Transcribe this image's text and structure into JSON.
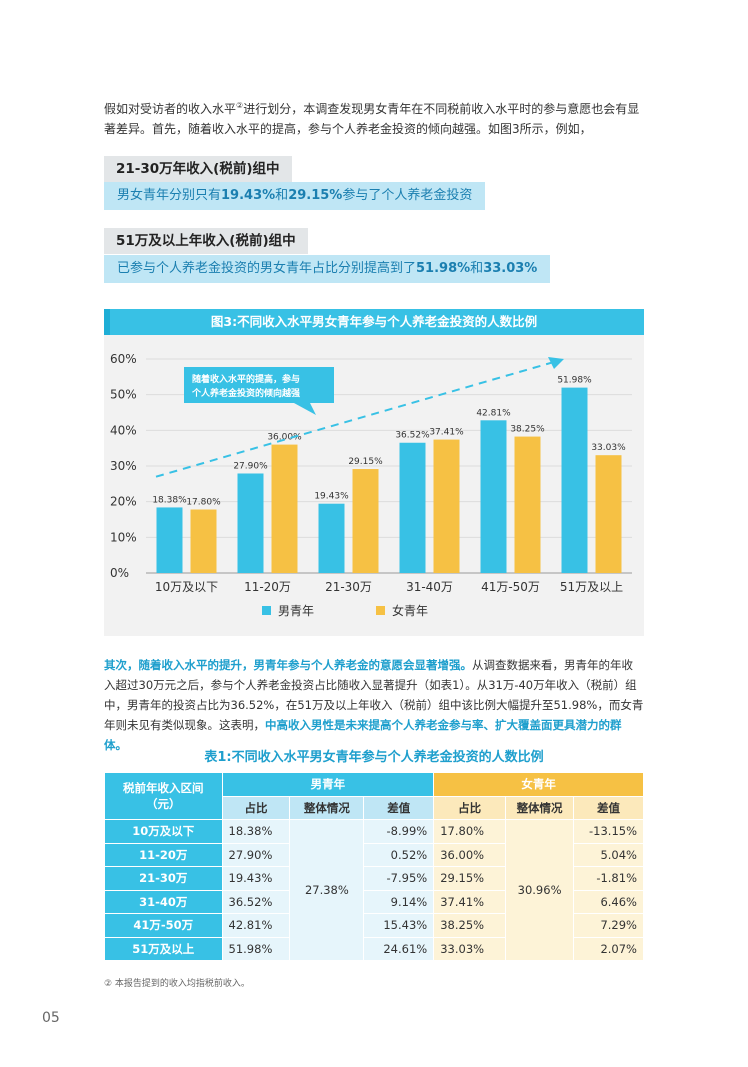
{
  "intro": {
    "text_before_sup": "假如对受访者的收入水平",
    "sup": "②",
    "text_after_sup": "进行划分，本调查发现男女青年在不同税前收入水平时的参与意愿也会有显著差异。首先，随着收入水平的提高，参与个人养老金投资的倾向越强。如图3所示，例如，"
  },
  "highlight1": {
    "title": "21-30万年收入(税前)组中",
    "body_prefix": "男女青年分别只有",
    "val1": "19.43%",
    "mid": "和",
    "val2": "29.15%",
    "body_suffix": "参与了个人养老金投资"
  },
  "highlight2": {
    "title": "51万及以上年收入(税前)组中",
    "body_prefix": "已参与个人养老金投资的男女青年占比分别提高到了",
    "val1": "51.98%",
    "mid": "和",
    "val2": "33.03%"
  },
  "chart_title": "图3:不同收入水平男女青年参与个人养老金投资的人数比例",
  "chart_data": {
    "type": "bar",
    "title": "图3:不同收入水平男女青年参与个人养老金投资的人数比例",
    "categories": [
      "10万及以下",
      "11-20万",
      "21-30万",
      "31-40万",
      "41万-50万",
      "51万及以上"
    ],
    "series": [
      {
        "name": "男青年",
        "values": [
          18.38,
          27.9,
          19.43,
          36.52,
          42.81,
          51.98
        ],
        "labels": [
          "18.38%",
          "27.90%",
          "19.43%",
          "36.52%",
          "42.81%",
          "51.98%"
        ]
      },
      {
        "name": "女青年",
        "values": [
          17.8,
          36.0,
          29.15,
          37.41,
          38.25,
          33.03
        ],
        "labels": [
          "17.80%",
          "36.00%",
          "29.15%",
          "37.41%",
          "38.25%",
          "33.03%"
        ]
      }
    ],
    "ylim": [
      0,
      60
    ],
    "yticks": [
      "0%",
      "10%",
      "20%",
      "30%",
      "40%",
      "50%",
      "60%"
    ],
    "annotation": [
      "随着收入水平的提高，参与",
      "个人养老金投资的倾向越强"
    ],
    "legend_position": "bottom-center"
  },
  "colors": {
    "male": "#38c1e5",
    "female": "#f6c144"
  },
  "para2": {
    "em1": "其次，随着收入水平的提升，男青年参与个人养老金的意愿会显著增强。",
    "plain": "从调查数据来看，男青年的年收入超过30万元之后，参与个人养老金投资占比随收入显著提升（如表1）。从31万-40万年收入（税前）组中，男青年的投资占比为36.52%，在51万及以上年收入（税前）组中该比例大幅提升至51.98%，而女青年则未见有类似现象。这表明，",
    "em2": "中高收入男性是未来提高个人养老金参与率、扩大覆盖面更具潜力的群体。"
  },
  "table": {
    "title": "表1:不同收入水平男女青年参与个人养老金投资的人数比例",
    "range_header": "税前年收入区间（元）",
    "male_header": "男青年",
    "female_header": "女青年",
    "sub_headers": [
      "占比",
      "整体情况",
      "差值"
    ],
    "male_overall": "27.38%",
    "female_overall": "30.96%",
    "rows": [
      {
        "range": "10万及以下",
        "m_share": "18.38%",
        "m_diff": "-8.99%",
        "f_share": "17.80%",
        "f_diff": "-13.15%"
      },
      {
        "range": "11-20万",
        "m_share": "27.90%",
        "m_diff": "0.52%",
        "f_share": "36.00%",
        "f_diff": "5.04%"
      },
      {
        "range": "21-30万",
        "m_share": "19.43%",
        "m_diff": "-7.95%",
        "f_share": "29.15%",
        "f_diff": "-1.81%"
      },
      {
        "range": "31-40万",
        "m_share": "36.52%",
        "m_diff": "9.14%",
        "f_share": "37.41%",
        "f_diff": "6.46%"
      },
      {
        "range": "41万-50万",
        "m_share": "42.81%",
        "m_diff": "15.43%",
        "f_share": "38.25%",
        "f_diff": "7.29%"
      },
      {
        "range": "51万及以上",
        "m_share": "51.98%",
        "m_diff": "24.61%",
        "f_share": "33.03%",
        "f_diff": "2.07%"
      }
    ]
  },
  "footnote": "② 本报告提到的收入均指税前收入。",
  "page_number": "05"
}
